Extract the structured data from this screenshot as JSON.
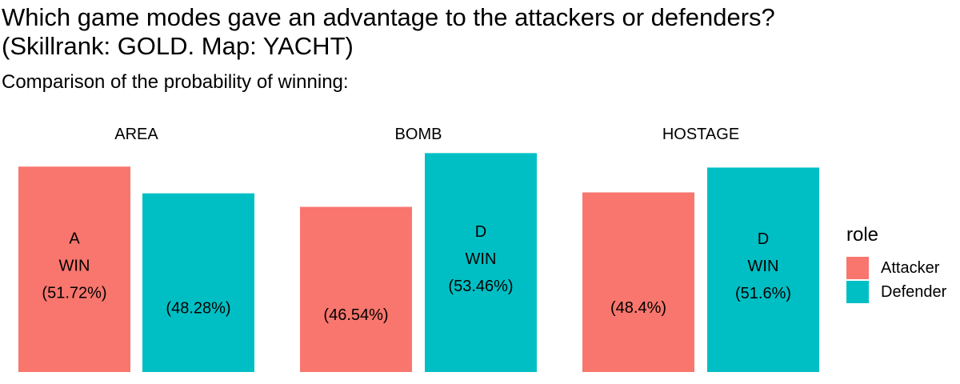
{
  "chart_data": {
    "type": "bar",
    "title": "Which game modes gave an advantage to the attackers or defenders?\n(Skillrank: GOLD. Map: YACHT)",
    "subtitle": "Comparison of the probability of winning:",
    "facets": [
      "AREA",
      "BOMB",
      "HOSTAGE"
    ],
    "series": [
      {
        "name": "Attacker",
        "color": "#F8766D",
        "values": [
          51.72,
          46.54,
          48.4
        ],
        "labels": [
          "(51.72%)",
          "(46.54%)",
          "(48.4%)"
        ]
      },
      {
        "name": "Defender",
        "color": "#00BFC4",
        "values": [
          48.28,
          53.46,
          51.6
        ],
        "labels": [
          "(48.28%)",
          "(53.46%)",
          "(51.6%)"
        ]
      }
    ],
    "winner_labels": [
      {
        "facet": "AREA",
        "series": "Attacker",
        "lines": [
          "A",
          "WIN"
        ]
      },
      {
        "facet": "BOMB",
        "series": "Defender",
        "lines": [
          "D",
          "WIN"
        ]
      },
      {
        "facet": "HOSTAGE",
        "series": "Defender",
        "lines": [
          "D",
          "WIN"
        ]
      }
    ],
    "legend": {
      "title": "role",
      "position": "right"
    },
    "grid": false
  }
}
